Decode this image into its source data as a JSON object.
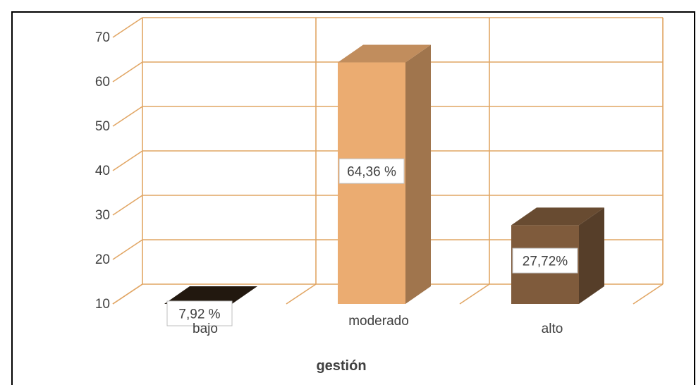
{
  "chart_data": {
    "type": "bar",
    "title": "",
    "xlabel": "gestión",
    "ylabel": "",
    "categories": [
      "bajo",
      "moderado",
      "alto"
    ],
    "values": [
      7.92,
      64.36,
      27.72
    ],
    "data_labels": [
      "7,92 %",
      "64,36 %",
      "27,72%"
    ],
    "y_ticks": [
      "10",
      "20",
      "30",
      "40",
      "50",
      "60",
      "70"
    ],
    "ylim": [
      10,
      70
    ],
    "grid": true,
    "three_d": true,
    "legend": "none"
  },
  "colors": {
    "bajo": "#2a1d12",
    "moderado": "#ebac71",
    "alto": "#7f5b3c",
    "grid": "#e1a664",
    "text": "#404040"
  }
}
